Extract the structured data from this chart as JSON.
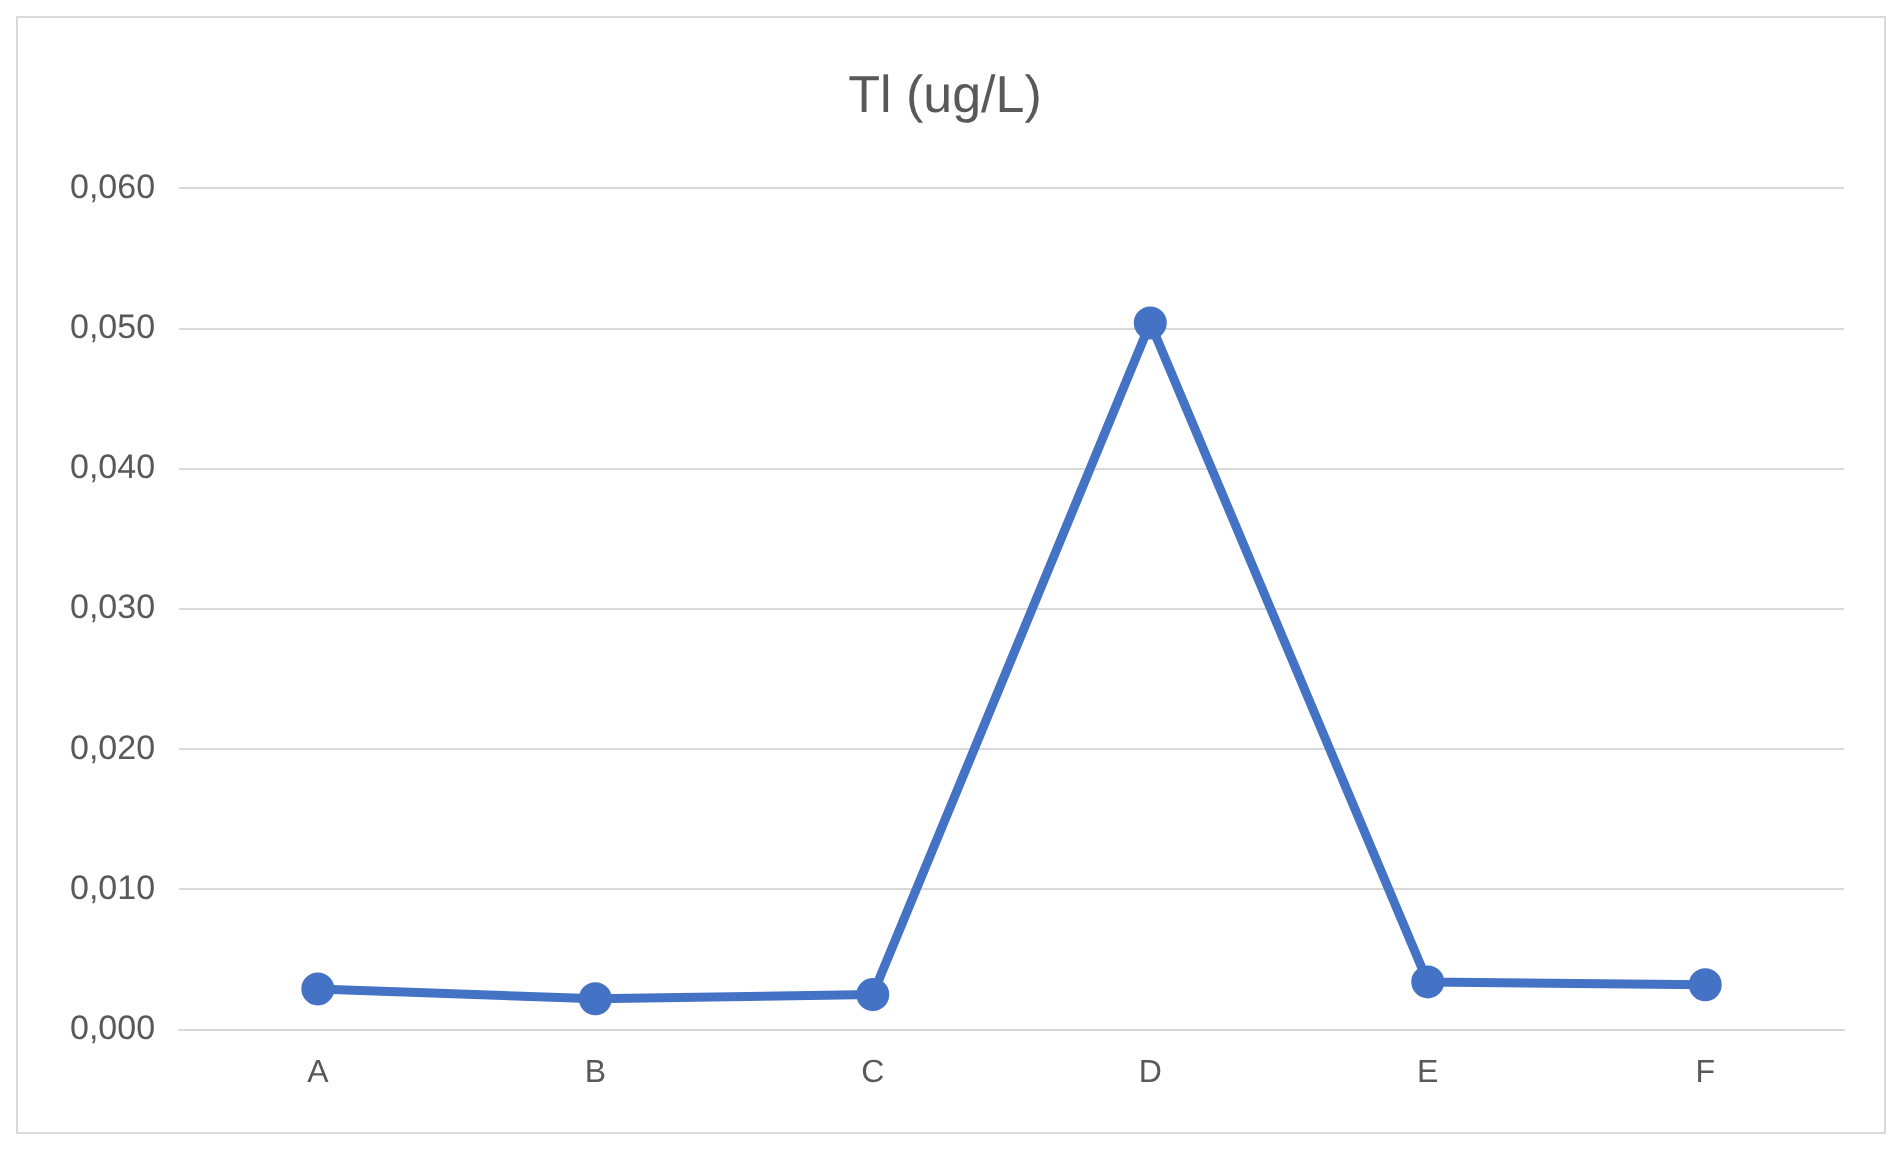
{
  "chart_data": {
    "type": "line",
    "title": "Tl (ug/L)",
    "categories": [
      "A",
      "B",
      "C",
      "D",
      "E",
      "F"
    ],
    "series": [
      {
        "color": "#4472c4",
        "values": [
          0.0029,
          0.0022,
          0.0025,
          0.0504,
          0.0034,
          0.0032
        ]
      }
    ],
    "ylim": [
      0,
      0.06
    ],
    "yticks": [
      {
        "value": 0,
        "label": "0,000"
      },
      {
        "value": 0.01,
        "label": "0,010"
      },
      {
        "value": 0.02,
        "label": "0,020"
      },
      {
        "value": 0.03,
        "label": "0,030"
      },
      {
        "value": 0.04,
        "label": "0,040"
      },
      {
        "value": 0.05,
        "label": "0,050"
      },
      {
        "value": 0.06,
        "label": "0,060"
      }
    ],
    "grid": "y",
    "legend": false,
    "marker": "circle",
    "line_style": "solid"
  }
}
